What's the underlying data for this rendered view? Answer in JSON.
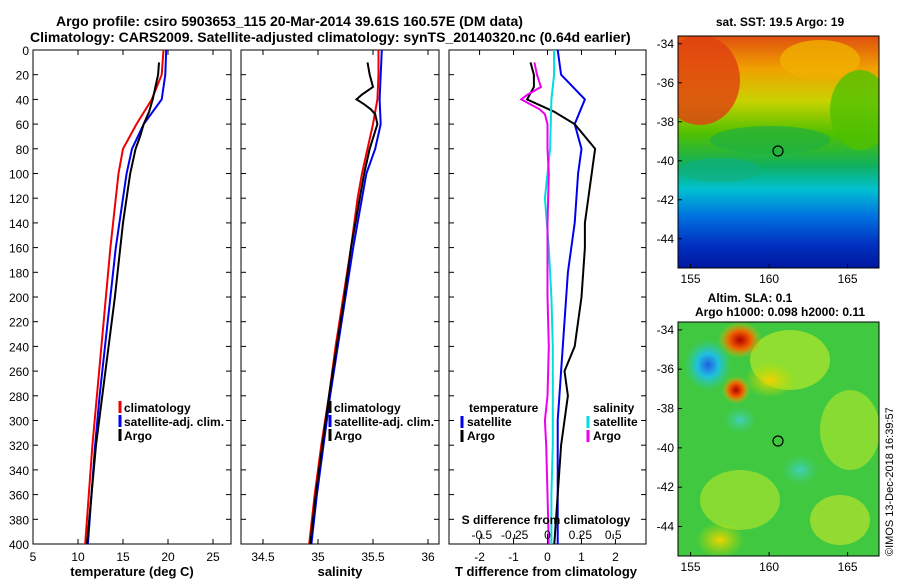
{
  "header": {
    "title_line1": "Argo profile: csiro 5903653_115 20-Mar-2014 39.61S 160.57E (DM data)",
    "title_line2": "Climatology: CARS2009. Satellite-adjusted climatology: synTS_20140320.nc (0.64d earlier)"
  },
  "credit": "©IMOS 13-Dec-2018 16:39:57",
  "colors": {
    "red": "#ee0000",
    "blue": "#0000ee",
    "black": "#000000",
    "magenta": "#ee00ee",
    "cyan": "#00dddd"
  },
  "chart_data": [
    {
      "type": "line",
      "name": "temperature-profile",
      "xlabel": "temperature (deg C)",
      "xlim": [
        5,
        27
      ],
      "xticks": [
        5,
        10,
        15,
        20,
        25
      ],
      "ylim": [
        0,
        400
      ],
      "yticks": [
        0,
        20,
        40,
        60,
        80,
        100,
        120,
        140,
        160,
        180,
        200,
        220,
        240,
        260,
        280,
        300,
        320,
        340,
        360,
        380,
        400
      ],
      "legend": [
        "climatology",
        "satellite-adj. clim.",
        "Argo"
      ],
      "series": [
        {
          "name": "climatology",
          "color": "#ee0000",
          "depth": [
            0,
            20,
            40,
            60,
            80,
            100,
            120,
            140,
            160,
            200,
            240,
            280,
            320,
            360,
            400
          ],
          "values": [
            19.5,
            19.3,
            18.2,
            16.5,
            15.0,
            14.5,
            14.2,
            13.9,
            13.6,
            13.1,
            12.6,
            12.1,
            11.6,
            11.2,
            10.8
          ]
        },
        {
          "name": "satellite-adj. clim.",
          "color": "#0000ee",
          "depth": [
            0,
            20,
            40,
            60,
            80,
            100,
            120,
            140,
            160,
            200,
            240,
            280,
            320,
            360,
            400
          ],
          "values": [
            19.8,
            19.7,
            19.3,
            17.3,
            16.0,
            15.4,
            15.0,
            14.6,
            14.2,
            13.6,
            13.0,
            12.4,
            11.9,
            11.5,
            11.1
          ]
        },
        {
          "name": "Argo",
          "color": "#000000",
          "depth": [
            10,
            20,
            30,
            40,
            50,
            60,
            70,
            80,
            100,
            120,
            140,
            160,
            200,
            240,
            280,
            320,
            360,
            400
          ],
          "values": [
            19.0,
            18.9,
            18.6,
            18.3,
            17.9,
            17.3,
            16.9,
            16.4,
            15.8,
            15.4,
            15.0,
            14.7,
            14.1,
            13.4,
            12.7,
            12.0,
            11.5,
            11.0
          ]
        }
      ]
    },
    {
      "type": "line",
      "name": "salinity-profile",
      "xlabel": "salinity",
      "xlim": [
        34.3,
        36.1
      ],
      "xticks": [
        34.5,
        35,
        35.5,
        36
      ],
      "xtick_labels": [
        "34.5",
        "35",
        "35.5",
        "36"
      ],
      "ylim": [
        0,
        400
      ],
      "legend": [
        "climatology",
        "satellite-adj. clim.",
        "Argo"
      ],
      "series": [
        {
          "name": "climatology",
          "color": "#ee0000",
          "depth": [
            0,
            20,
            40,
            60,
            80,
            100,
            120,
            160,
            200,
            240,
            280,
            320,
            360,
            400
          ],
          "values": [
            35.55,
            35.55,
            35.54,
            35.5,
            35.45,
            35.4,
            35.36,
            35.3,
            35.23,
            35.16,
            35.1,
            35.03,
            34.97,
            34.92
          ]
        },
        {
          "name": "satellite-adj. clim.",
          "color": "#0000ee",
          "depth": [
            0,
            20,
            40,
            60,
            80,
            100,
            120,
            160,
            200,
            240,
            280,
            320,
            360,
            400
          ],
          "values": [
            35.58,
            35.57,
            35.56,
            35.57,
            35.52,
            35.44,
            35.4,
            35.32,
            35.25,
            35.18,
            35.11,
            35.05,
            34.99,
            34.94
          ]
        },
        {
          "name": "Argo",
          "color": "#000000",
          "depth": [
            10,
            20,
            30,
            36,
            40,
            44,
            48,
            52,
            60,
            80,
            100,
            120,
            160,
            200,
            240,
            280,
            320,
            360,
            400
          ],
          "values": [
            35.45,
            35.47,
            35.5,
            35.4,
            35.35,
            35.42,
            35.48,
            35.52,
            35.54,
            35.47,
            35.42,
            35.38,
            35.3,
            35.24,
            35.17,
            35.1,
            35.04,
            34.98,
            34.93
          ]
        }
      ]
    },
    {
      "type": "line",
      "name": "difference-profile",
      "xlabel": "T difference from climatology",
      "xlim": [
        -2.9,
        2.9
      ],
      "xticks": [
        -2,
        -1,
        0,
        1,
        2
      ],
      "top_axis_label": "S difference from climatology",
      "top_ticks": [
        -0.5,
        -0.25,
        0,
        0.25,
        0.5
      ],
      "top_tick_labels": [
        "-0.5",
        "-0.25",
        "0",
        "0.25",
        "0.5"
      ],
      "ylim": [
        0,
        400
      ],
      "legend_temperature": {
        "title": "temperature",
        "items": [
          "satellite",
          "Argo"
        ]
      },
      "legend_salinity": {
        "title": "salinity",
        "items": [
          "satellite",
          "Argo"
        ]
      },
      "series": [
        {
          "name": "temperature satellite",
          "color": "#0000ee",
          "depth": [
            0,
            20,
            40,
            60,
            80,
            100,
            140,
            180,
            220,
            260,
            300,
            340,
            380,
            400
          ],
          "values": [
            0.3,
            0.4,
            1.1,
            0.8,
            1.0,
            0.9,
            0.8,
            0.6,
            0.5,
            0.4,
            0.3,
            0.3,
            0.3,
            0.3
          ]
        },
        {
          "name": "temperature Argo",
          "color": "#000000",
          "depth": [
            10,
            20,
            30,
            40,
            50,
            60,
            80,
            100,
            120,
            140,
            160,
            200,
            240,
            260,
            280,
            300,
            320,
            360,
            400
          ],
          "values": [
            -0.5,
            -0.4,
            -0.4,
            -0.6,
            0.2,
            0.8,
            1.4,
            1.3,
            1.2,
            1.1,
            1.1,
            1.0,
            0.8,
            0.5,
            0.6,
            0.5,
            0.4,
            0.3,
            0.2
          ]
        },
        {
          "name": "salinity satellite",
          "color": "#00dddd",
          "depth": [
            0,
            20,
            40,
            80,
            120,
            160,
            200,
            240,
            280,
            320,
            360,
            400
          ],
          "values": [
            0.05,
            0.05,
            0.03,
            0.02,
            -0.02,
            0.01,
            0.03,
            0.04,
            0.04,
            0.04,
            0.03,
            0.03
          ]
        },
        {
          "name": "salinity Argo",
          "color": "#ee00ee",
          "depth": [
            10,
            20,
            30,
            36,
            40,
            48,
            52,
            60,
            80,
            100,
            140,
            200,
            240,
            280,
            300,
            320,
            360,
            400
          ],
          "values": [
            -0.1,
            -0.08,
            -0.05,
            -0.15,
            -0.2,
            -0.06,
            -0.02,
            0.0,
            0.0,
            0.01,
            0.0,
            0.0,
            0.01,
            0.0,
            -0.02,
            -0.01,
            0.0,
            0.01
          ]
        }
      ]
    },
    {
      "type": "heatmap",
      "name": "sst-map",
      "title": "sat. SST: 19.5 Argo: 19",
      "xlim": [
        154.2,
        167.0
      ],
      "xticks": [
        155,
        160,
        165
      ],
      "ylim": [
        -45.5,
        -33.6
      ],
      "yticks": [
        -34,
        -36,
        -38,
        -40,
        -42,
        -44
      ],
      "marker": {
        "lon": 160.57,
        "lat": -39.61
      }
    },
    {
      "type": "heatmap",
      "name": "sla-map",
      "title_line1": "Altim. SLA: 0.1",
      "title_line2": "Argo h1000: 0.098 h2000: 0.11",
      "xlim": [
        154.2,
        167.0
      ],
      "xticks": [
        155,
        160,
        165
      ],
      "ylim": [
        -45.5,
        -33.6
      ],
      "yticks": [
        -34,
        -36,
        -38,
        -40,
        -42,
        -44
      ],
      "marker": {
        "lon": 160.57,
        "lat": -39.61
      }
    }
  ]
}
